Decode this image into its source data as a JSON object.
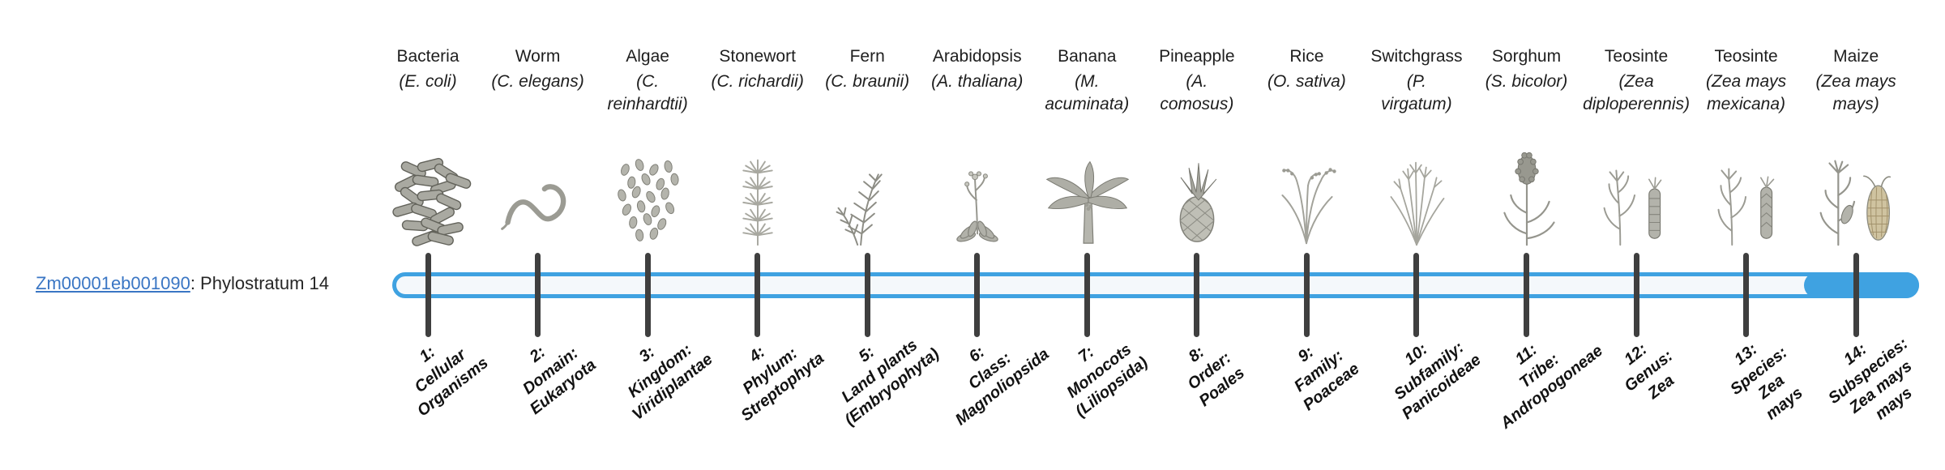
{
  "colors": {
    "accent": "#3fa2e1",
    "bar_fill": "#f4f8fb",
    "tick": "#3f3f3f",
    "link": "#3a76c4",
    "text": "#262626"
  },
  "gene": {
    "id": "Zm00001eb001090",
    "suffix": ": Phylostratum 14",
    "phylostratum": 14
  },
  "strata": [
    {
      "rank": 1,
      "label": "1:\nCellular\nOrganisms",
      "organism": {
        "common": "Bacteria",
        "scientific": "(E. coli)",
        "icon": "bacteria-icon"
      }
    },
    {
      "rank": 2,
      "label": "2:\nDomain:\nEukaryota",
      "organism": {
        "common": "Worm",
        "scientific": "(C. elegans)",
        "icon": "worm-icon"
      }
    },
    {
      "rank": 3,
      "label": "3:\nKingdom:\nViridiplantae",
      "organism": {
        "common": "Algae",
        "scientific": "(C.\nreinhardtii)",
        "icon": "algae-icon"
      }
    },
    {
      "rank": 4,
      "label": "4:\nPhylum:\nStreptophyta",
      "organism": {
        "common": "Stonewort",
        "scientific": "(C. richardii)",
        "icon": "stonewort-icon"
      }
    },
    {
      "rank": 5,
      "label": "5:\nLand plants\n(Embryophyta)",
      "organism": {
        "common": "Fern",
        "scientific": "(C. braunii)",
        "icon": "fern-icon"
      }
    },
    {
      "rank": 6,
      "label": "6:\nClass:\nMagnoliopsida",
      "organism": {
        "common": "Arabidopsis",
        "scientific": "(A. thaliana)",
        "icon": "arabidopsis-icon"
      }
    },
    {
      "rank": 7,
      "label": "7:\nMonocots\n(Liliopsida)",
      "organism": {
        "common": "Banana",
        "scientific": "(M.\nacuminata)",
        "icon": "banana-icon"
      }
    },
    {
      "rank": 8,
      "label": "8:\nOrder:\nPoales",
      "organism": {
        "common": "Pineapple",
        "scientific": "(A.\ncomosus)",
        "icon": "pineapple-icon"
      }
    },
    {
      "rank": 9,
      "label": "9:\nFamily:\nPoaceae",
      "organism": {
        "common": "Rice",
        "scientific": "(O. sativa)",
        "icon": "rice-icon"
      }
    },
    {
      "rank": 10,
      "label": "10:\nSubfamily:\nPanicoideae",
      "organism": {
        "common": "Switchgrass",
        "scientific": "(P.\nvirgatum)",
        "icon": "switchgrass-icon"
      }
    },
    {
      "rank": 11,
      "label": "11:\nTribe:\nAndropogoneae",
      "organism": {
        "common": "Sorghum",
        "scientific": "(S. bicolor)",
        "icon": "sorghum-icon"
      }
    },
    {
      "rank": 12,
      "label": "12:\nGenus:\nZea",
      "organism": {
        "common": "Teosinte",
        "scientific": "(Zea\ndiploperennis)",
        "icon": "teosinte-icon"
      }
    },
    {
      "rank": 13,
      "label": "13:\nSpecies:\nZea\nmays",
      "organism": {
        "common": "Teosinte",
        "scientific": "(Zea mays\nmexicana)",
        "icon": "teosinte2-icon"
      }
    },
    {
      "rank": 14,
      "label": "14:\nSubspecies:\nZea mays\nmays",
      "organism": {
        "common": "Maize",
        "scientific": "(Zea mays\nmays)",
        "icon": "maize-icon"
      }
    }
  ]
}
